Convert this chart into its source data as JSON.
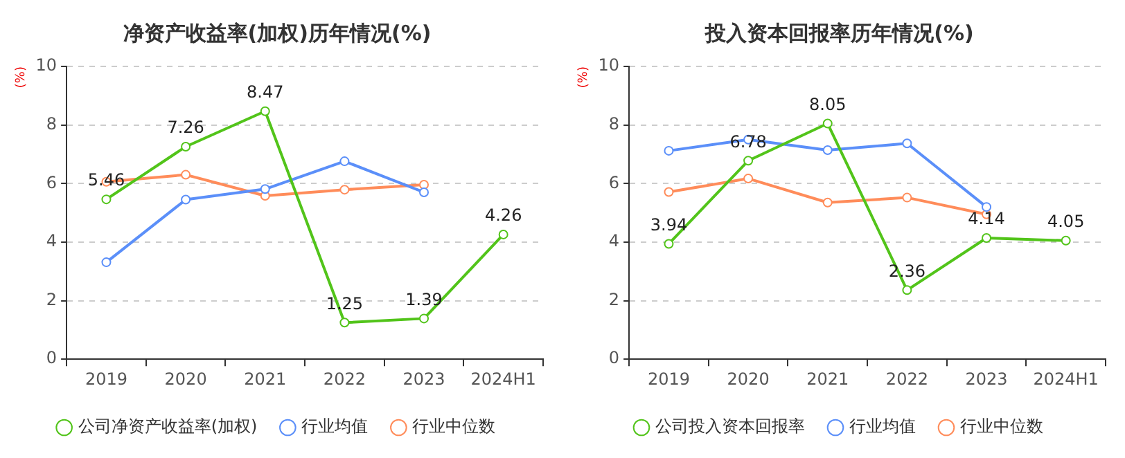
{
  "chart_data": [
    {
      "type": "line",
      "title": "净资产收益率(加权)历年情况(%)",
      "ylabel": "(%)",
      "categories": [
        "2019",
        "2020",
        "2021",
        "2022",
        "2023",
        "2024H1"
      ],
      "series": [
        {
          "name": "公司净资产收益率(加权)",
          "color": "#52c41a",
          "values": [
            5.46,
            7.26,
            8.47,
            1.25,
            1.39,
            4.26
          ],
          "value_labels": [
            "5.46",
            "7.26",
            "8.47",
            "1.25",
            "1.39",
            "4.26"
          ]
        },
        {
          "name": "行业均值",
          "color": "#5b8ff9",
          "values": [
            3.31,
            5.45,
            5.81,
            6.76,
            5.7,
            null
          ]
        },
        {
          "name": "行业中位数",
          "color": "#ff8c5a",
          "values": [
            6.06,
            6.3,
            5.58,
            5.79,
            5.96,
            null
          ]
        }
      ],
      "ylim": [
        0,
        10
      ],
      "yticks": [
        0,
        2,
        4,
        6,
        8,
        10
      ],
      "grid": "y",
      "legend": "bottom",
      "marker": "circle"
    },
    {
      "type": "line",
      "title": "投入资本回报率历年情况(%)",
      "ylabel": "(%)",
      "categories": [
        "2019",
        "2020",
        "2021",
        "2022",
        "2023",
        "2024H1"
      ],
      "series": [
        {
          "name": "公司投入资本回报率",
          "color": "#52c41a",
          "values": [
            3.94,
            6.78,
            8.05,
            2.36,
            4.14,
            4.05
          ],
          "value_labels": [
            "3.94",
            "6.78",
            "8.05",
            "2.36",
            "4.14",
            "4.05"
          ]
        },
        {
          "name": "行业均值",
          "color": "#5b8ff9",
          "values": [
            7.12,
            7.5,
            7.14,
            7.37,
            5.2,
            null
          ]
        },
        {
          "name": "行业中位数",
          "color": "#ff8c5a",
          "values": [
            5.71,
            6.17,
            5.35,
            5.52,
            4.95,
            null
          ]
        }
      ],
      "ylim": [
        0,
        10
      ],
      "yticks": [
        0,
        2,
        4,
        6,
        8,
        10
      ],
      "grid": "y",
      "legend": "bottom",
      "marker": "circle"
    }
  ]
}
